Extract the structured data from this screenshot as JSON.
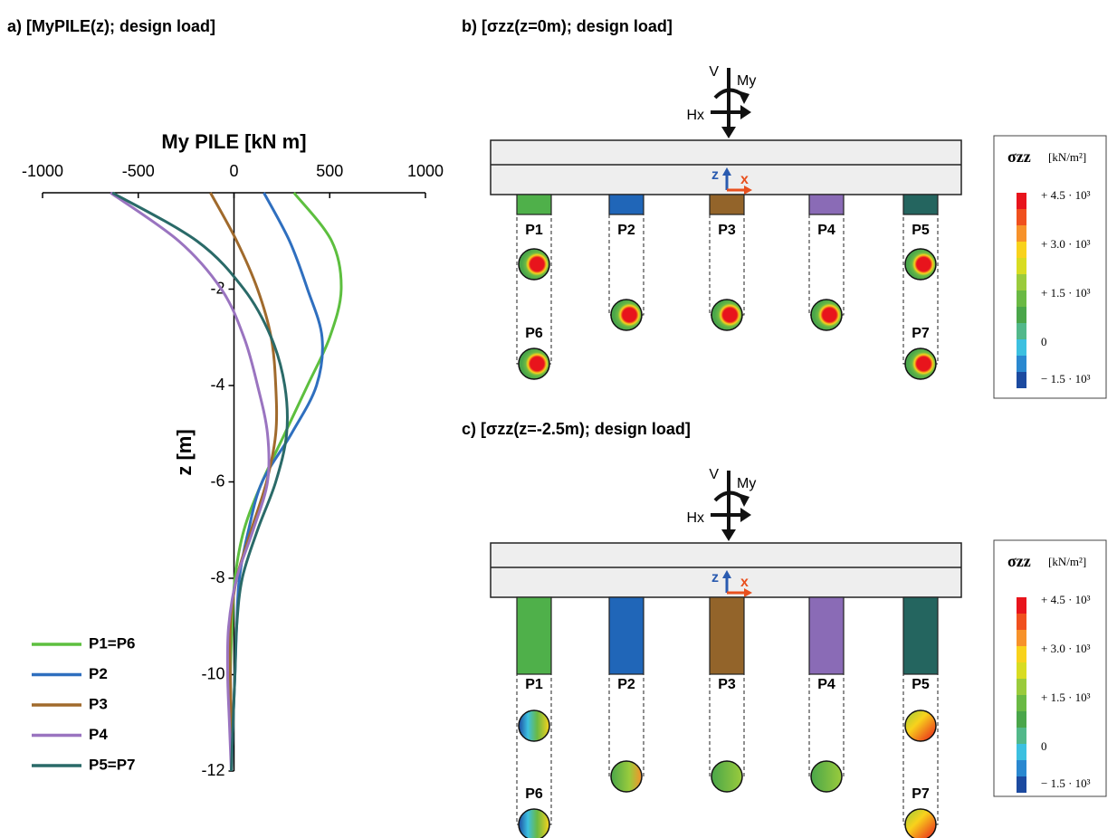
{
  "chart_data": {
    "type": "line",
    "title": "a) [MyPILE(z); design load]",
    "xlabel": "My PILE [kN m]",
    "ylabel": "z [m]",
    "y": [
      0,
      -1,
      -2,
      -3,
      -4,
      -5,
      -6,
      -7,
      -8,
      -9,
      -10,
      -11,
      -12
    ],
    "series": [
      {
        "name": "P1=P6",
        "color": "#5dbf3f",
        "values": [
          313,
          510,
          560,
          500,
          384,
          265,
          147,
          52,
          5,
          -10,
          -19,
          -14,
          -14
        ]
      },
      {
        "name": "P2",
        "color": "#2f6fbf",
        "values": [
          156,
          290,
          384,
          460,
          431,
          300,
          147,
          76,
          28,
          14,
          5,
          -5,
          -14
        ]
      },
      {
        "name": "P3",
        "color": "#a06a2c",
        "values": [
          -123,
          14,
          123,
          194,
          218,
          218,
          170,
          90,
          14,
          -19,
          -19,
          -14,
          -14
        ]
      },
      {
        "name": "P4",
        "color": "#9a74c0",
        "values": [
          -645,
          -289,
          -66,
          52,
          123,
          175,
          175,
          100,
          14,
          -28,
          -33,
          -24,
          -14
        ]
      },
      {
        "name": "P5=P7",
        "color": "#2a6a68",
        "values": [
          -635,
          -194,
          52,
          194,
          265,
          275,
          218,
          123,
          43,
          14,
          5,
          -5,
          -14
        ]
      }
    ],
    "xlim": [
      -1000,
      1000
    ],
    "xticks": [
      -1000,
      -500,
      0,
      500,
      1000
    ],
    "ylim": [
      -12,
      0
    ],
    "yticks": [
      -2,
      -4,
      -6,
      -8,
      -10,
      -12
    ],
    "legend": "lower-left"
  },
  "diagrams": [
    {
      "title": "b) [σzz(z=0m); design load]",
      "loads": [
        "V",
        "My",
        "Hx"
      ],
      "axes": [
        "z",
        "x"
      ],
      "piles": [
        "P1",
        "P2",
        "P3",
        "P4",
        "P5",
        "P6",
        "P7"
      ],
      "legend_title": "σzz",
      "legend_unit": "[kN/m²]",
      "legend_labels": [
        "+ 4.5 · 10³",
        "+ 3.0 · 10³",
        "+ 1.5 · 10³",
        "0",
        "− 1.5 · 10³"
      ]
    },
    {
      "title": "c) [σzz(z=-2.5m); design load]",
      "loads": [
        "V",
        "My",
        "Hx"
      ],
      "axes": [
        "z",
        "x"
      ],
      "piles": [
        "P1",
        "P2",
        "P3",
        "P4",
        "P5",
        "P6",
        "P7"
      ],
      "legend_title": "σzz",
      "legend_unit": "[kN/m²]",
      "legend_labels": [
        "+ 4.5 · 10³",
        "+ 3.0 · 10³",
        "+ 1.5 · 10³",
        "0",
        "− 1.5 · 10³"
      ]
    }
  ]
}
